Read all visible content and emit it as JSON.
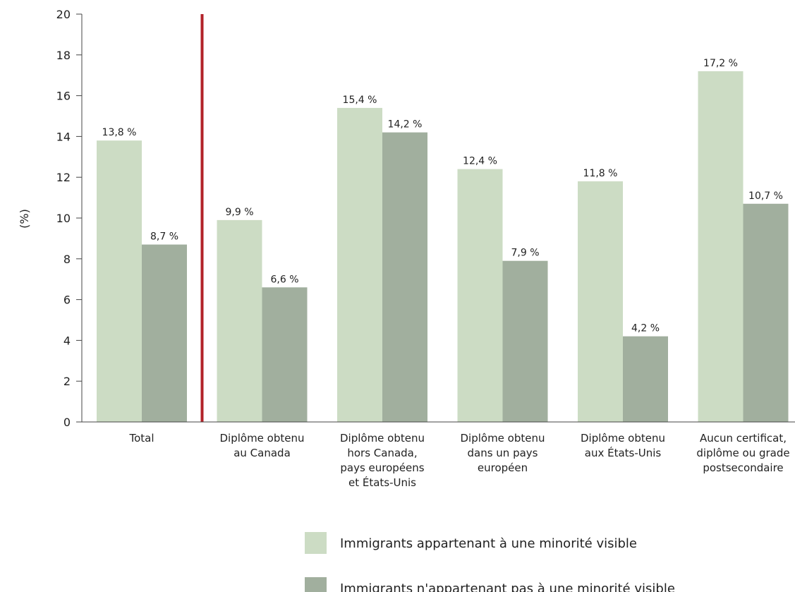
{
  "chart_data": {
    "type": "bar",
    "ylabel": "(%)",
    "ylim": [
      0,
      20
    ],
    "yticks": [
      0,
      2,
      4,
      6,
      8,
      10,
      12,
      14,
      16,
      18,
      20
    ],
    "grid": false,
    "legend_position": "bottom",
    "categories": [
      [
        "Total"
      ],
      [
        "Diplôme obtenu",
        "au Canada"
      ],
      [
        "Diplôme obtenu",
        "hors Canada,",
        "pays européens",
        "et États-Unis"
      ],
      [
        "Diplôme obtenu",
        "dans un pays",
        "européen"
      ],
      [
        "Diplôme obtenu",
        "aux États-Unis"
      ],
      [
        "Aucun certificat,",
        "diplôme ou grade",
        "postsecondaire"
      ]
    ],
    "series": [
      {
        "name": "Immigrants appartenant à une minorité visible",
        "color": "#ccdcc4",
        "values": [
          13.8,
          9.9,
          15.4,
          12.4,
          11.8,
          17.2
        ],
        "labels": [
          "13,8 %",
          "9,9 %",
          "15,4 %",
          "12,4 %",
          "11,8 %",
          "17,2 %"
        ]
      },
      {
        "name": "Immigrants n'appartenant pas à une minorité visible",
        "color": "#a1af9e",
        "values": [
          8.7,
          6.6,
          14.2,
          7.9,
          4.2,
          10.7
        ],
        "labels": [
          "8,7 %",
          "6,6 %",
          "14,2 %",
          "7,9 %",
          "4,2 %",
          "10,7 %"
        ]
      }
    ],
    "separator_after_category": 0,
    "separator_color": "#b22229"
  }
}
